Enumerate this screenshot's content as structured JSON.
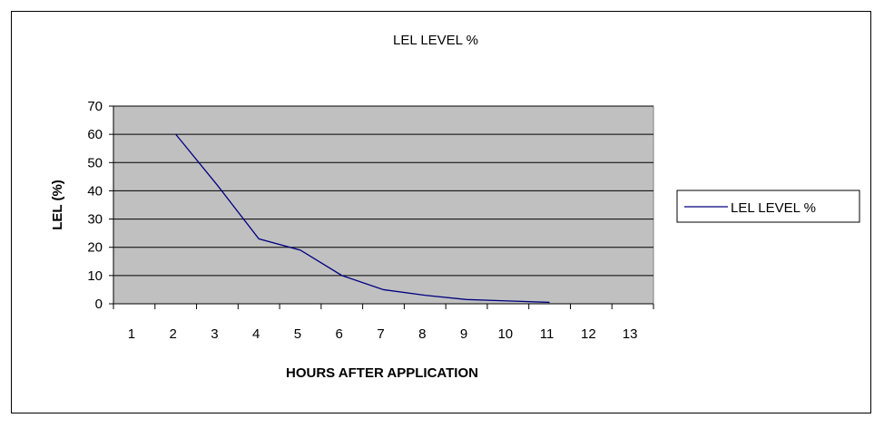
{
  "chart_data": {
    "type": "line",
    "title": "LEL LEVEL %",
    "xlabel": "HOURS AFTER APPLICATION",
    "ylabel": "LEL (%)",
    "categories": [
      "1",
      "2",
      "3",
      "4",
      "5",
      "6",
      "7",
      "8",
      "9",
      "10",
      "11",
      "12",
      "13"
    ],
    "ylim": [
      0,
      70
    ],
    "yticks": [
      "0",
      "10",
      "20",
      "30",
      "40",
      "50",
      "60",
      "70"
    ],
    "grid": true,
    "legend_position": "right",
    "plot_background": "#c0c0c0",
    "series": [
      {
        "name": "LEL LEVEL %",
        "color": "#000080",
        "values": [
          null,
          60,
          42,
          23,
          19,
          10,
          5,
          3,
          1.5,
          1,
          0.5,
          null,
          null
        ]
      }
    ]
  }
}
